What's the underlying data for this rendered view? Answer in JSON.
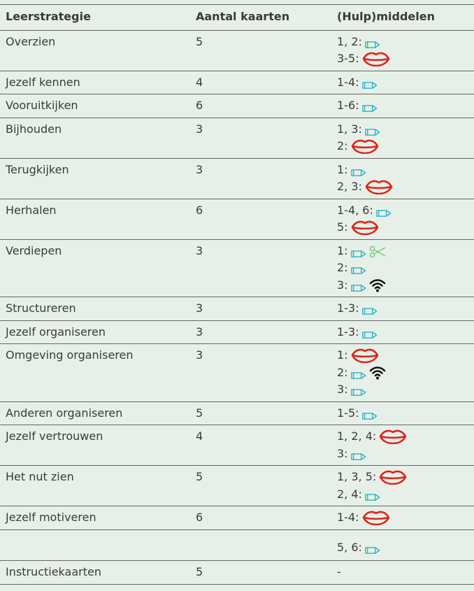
{
  "header": [
    "Leerstrategie",
    "Aantal kaarten",
    "(Hulp)middelen"
  ],
  "rows": [
    {
      "strategy": "Overzien",
      "cards": 5,
      "tools": [
        "1, 2:",
        "3-5:"
      ]
    },
    {
      "strategy": "Jezelf kennen",
      "cards": 4,
      "tools": [
        "1-4:"
      ]
    },
    {
      "strategy": "Vooruitkijken",
      "cards": 6,
      "tools": [
        "1-6:"
      ]
    },
    {
      "strategy": "Bijhouden",
      "cards": 3,
      "tools": [
        "1, 3:",
        "2:"
      ]
    },
    {
      "strategy": "Terugkijken",
      "cards": 3,
      "tools": [
        "1:",
        "2, 3:"
      ]
    },
    {
      "strategy": "Herhalen",
      "cards": 6,
      "tools": [
        "1-4, 6:",
        "5:"
      ]
    },
    {
      "strategy": "Verdiepen",
      "cards": 3,
      "tools": [
        "1:",
        "2:",
        "3:"
      ]
    },
    {
      "strategy": "Structureren",
      "cards": 3,
      "tools": [
        "1-3:"
      ]
    },
    {
      "strategy": "Jezelf organiseren",
      "cards": 3,
      "tools": [
        "1-3:"
      ]
    },
    {
      "strategy": "Omgeving organiseren",
      "cards": 3,
      "tools": [
        "1:",
        "2:",
        "3:"
      ]
    },
    {
      "strategy": "Anderen organiseren",
      "cards": 5,
      "tools": [
        "1-5:"
      ]
    },
    {
      "strategy": "Jezelf vertrouwen",
      "cards": 4,
      "tools": [
        "1, 2, 4:",
        "3:"
      ]
    },
    {
      "strategy": "Het nut zien",
      "cards": 5,
      "tools": [
        "1, 3, 5:",
        "2, 4:"
      ]
    },
    {
      "strategy": "Jezelf motiveren",
      "cards": 6,
      "tools": [
        "1-4:"
      ]
    },
    {
      "tools": [
        "5, 6:"
      ]
    },
    {
      "strategy": "Instructiekaarten",
      "cards": 5,
      "tools": [
        "-"
      ]
    }
  ]
}
